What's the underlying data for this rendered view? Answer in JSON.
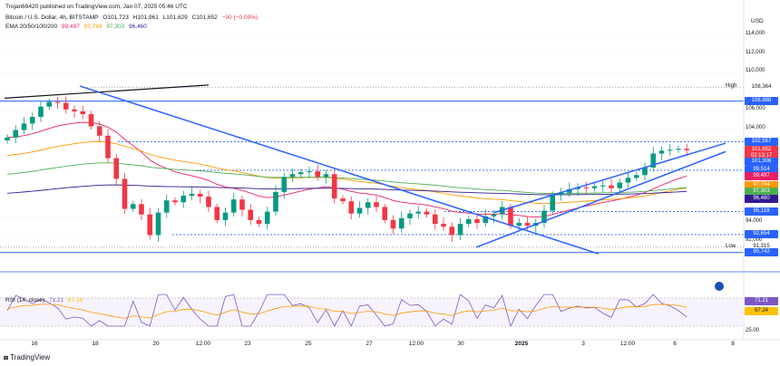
{
  "header": {
    "publisher": "Trojan69420 published on TradingView.com, Jan 07, 2025 05:46 UTC",
    "symbol": "Bitcoin / U.S. Dollar, 4h, BITSTAMP",
    "open": "O101,723",
    "high": "H101,961",
    "low": "L101,629",
    "close": "C101,652",
    "change": "−90 (−0.09%)",
    "ema_label": "EMA 20/50/100/200",
    "ema20": "99,497",
    "ema50": "97,784",
    "ema100": "97,303",
    "ema200": "96,460"
  },
  "axis": {
    "currency": "USD",
    "ticks": [
      "114,000",
      "112,000",
      "110,000",
      "108,000",
      "106,000",
      "104,000",
      "94,000",
      "92,000"
    ]
  },
  "price_labels": [
    {
      "value": "108,364",
      "tag": "High",
      "price": 108364,
      "bg": "#ffffff",
      "fg": "#131722"
    },
    {
      "value": "106,888",
      "price": 106888,
      "bg": "#2962ff",
      "fg": "#ffffff"
    },
    {
      "value": "102,557",
      "price": 102557,
      "bg": "#2962ff",
      "fg": "#ffffff"
    },
    {
      "value": "101,652",
      "price": 101652,
      "bg": "#f23645",
      "fg": "#ffffff"
    },
    {
      "value": "02:13:17",
      "price": 101000,
      "bg": "#f23645",
      "fg": "#ffffff"
    },
    {
      "value": "101,306",
      "price": 100400,
      "bg": "#2962ff",
      "fg": "#ffffff"
    },
    {
      "value": "99,514",
      "price": 99514,
      "bg": "#2962ff",
      "fg": "#ffffff"
    },
    {
      "value": "99,497",
      "price": 98900,
      "bg": "#e91e63",
      "fg": "#ffffff"
    },
    {
      "value": "97,784",
      "price": 97900,
      "bg": "#ff9800",
      "fg": "#ffffff"
    },
    {
      "value": "97,303",
      "price": 97200,
      "bg": "#4caf50",
      "fg": "#ffffff"
    },
    {
      "value": "96,460",
      "price": 96460,
      "bg": "#311b92",
      "fg": "#ffffff"
    },
    {
      "value": "95,119",
      "price": 95119,
      "bg": "#2962ff",
      "fg": "#ffffff"
    },
    {
      "value": "92,654",
      "price": 92654,
      "bg": "#2962ff",
      "fg": "#ffffff"
    },
    {
      "value": "91,315",
      "tag": "Low",
      "price": 91315,
      "bg": "#ffffff",
      "fg": "#131722"
    },
    {
      "value": "90,742",
      "price": 90742,
      "bg": "#2962ff",
      "fg": "#ffffff"
    }
  ],
  "rsi": {
    "label": "RSI (14, close)",
    "value1": "71.21",
    "value2": "67.24",
    "ticks": [
      "25.00"
    ],
    "colors": {
      "rsi": "#7e57c2",
      "ma": "#ff9800",
      "value": "#7e57c2",
      "ma_value": "#ffc107"
    }
  },
  "x_labels": [
    "16",
    "18",
    "20",
    "12:00",
    "23",
    "25",
    "27",
    "12:00",
    "30",
    "2025",
    "3",
    "12:00",
    "6",
    "8"
  ],
  "footer": "TradingView",
  "colors": {
    "up": "#089981",
    "down": "#f23645",
    "trend": "#2962ff",
    "ema20": "#e91e63",
    "ema50": "#ff9800",
    "ema100": "#4caf50",
    "ema200": "#311b92"
  },
  "chart_data": {
    "type": "line",
    "series_close": [
      103000,
      103800,
      104500,
      105200,
      106300,
      106800,
      106700,
      106000,
      105800,
      105500,
      104200,
      103200,
      100800,
      98600,
      95400,
      95900,
      94800,
      92600,
      95000,
      96300,
      96100,
      96800,
      97000,
      96700,
      95600,
      94200,
      95000,
      96400,
      95300,
      94200,
      93800,
      95100,
      97200,
      98800,
      99100,
      99300,
      99400,
      98800,
      99100,
      96500,
      96200,
      94900,
      95500,
      96100,
      95600,
      94200,
      93300,
      94400,
      94900,
      95100,
      94800,
      93800,
      93500,
      92600,
      93800,
      94300,
      93900,
      94600,
      94800,
      95600,
      93600,
      93900,
      93600,
      93900,
      95200,
      96900,
      97100,
      97500,
      97700,
      97600,
      97800,
      97900,
      97600,
      98200,
      98700,
      99000,
      99800,
      101300,
      101600,
      101700,
      101800,
      101650
    ]
  }
}
